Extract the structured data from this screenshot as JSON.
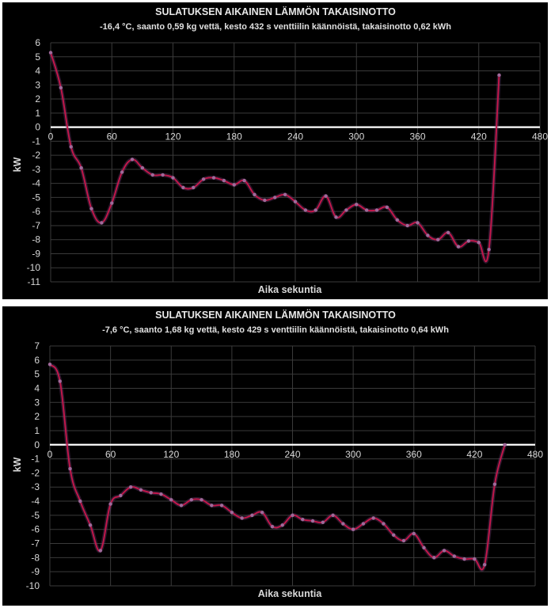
{
  "colors": {
    "background": "#000000",
    "series": "#c8174b",
    "marker": "#a06a9a",
    "zero_line": "#ffffff",
    "grid": "#3a3a3a",
    "text": "#d8d8d8"
  },
  "chart_data": [
    {
      "type": "line",
      "title": "SULATUKSEN AIKAINEN LÄMMÖN TAKAISINOTTO",
      "subtitle": "-16,4 °C, saanto 0,59 kg vettä, kesto 432 s venttiilin käännöistä, takaisinotto 0,62 kWh",
      "xlabel": "Aika sekuntia",
      "ylabel": "kW",
      "xlim": [
        0,
        480
      ],
      "ylim": [
        -11,
        6
      ],
      "xticks": [
        0,
        60,
        120,
        180,
        240,
        300,
        360,
        420,
        480
      ],
      "yticks": [
        6,
        5,
        4,
        3,
        2,
        1,
        0,
        -1,
        -2,
        -3,
        -4,
        -5,
        -6,
        -7,
        -8,
        -9,
        -10,
        -11
      ],
      "series": [
        {
          "name": "kW",
          "x": [
            0,
            10,
            20,
            30,
            40,
            50,
            60,
            70,
            80,
            90,
            100,
            110,
            120,
            130,
            140,
            150,
            160,
            170,
            180,
            190,
            200,
            210,
            220,
            230,
            240,
            250,
            260,
            270,
            280,
            290,
            300,
            310,
            320,
            330,
            340,
            350,
            360,
            370,
            380,
            390,
            400,
            410,
            420,
            430,
            440
          ],
          "y": [
            5.3,
            2.8,
            -1.4,
            -2.9,
            -5.8,
            -6.8,
            -5.4,
            -3.2,
            -2.3,
            -2.9,
            -3.4,
            -3.4,
            -3.6,
            -4.3,
            -4.3,
            -3.7,
            -3.6,
            -3.8,
            -4.1,
            -3.8,
            -4.8,
            -5.2,
            -5.0,
            -4.8,
            -5.3,
            -5.9,
            -5.9,
            -4.9,
            -6.4,
            -5.9,
            -5.5,
            -5.9,
            -5.9,
            -5.7,
            -6.6,
            -7.0,
            -6.8,
            -7.7,
            -8.0,
            -7.5,
            -8.5,
            -8.1,
            -8.2,
            -8.7,
            3.7
          ]
        }
      ]
    },
    {
      "type": "line",
      "title": "SULATUKSEN AIKAINEN LÄMMÖN TAKAISINOTTO",
      "subtitle": "-7,6 °C, saanto 1,68 kg vettä, kesto 429 s venttiilin käännöistä, takaisinotto 0,64 kWh",
      "xlabel": "Aika sekuntia",
      "ylabel": "kW",
      "xlim": [
        0,
        480
      ],
      "ylim": [
        -10,
        7
      ],
      "xticks": [
        0,
        60,
        120,
        180,
        240,
        300,
        360,
        420,
        480
      ],
      "yticks": [
        7,
        6,
        5,
        4,
        3,
        2,
        1,
        0,
        -1,
        -2,
        -3,
        -4,
        -5,
        -6,
        -7,
        -8,
        -9,
        -10
      ],
      "series": [
        {
          "name": "kW",
          "x": [
            0,
            10,
            20,
            30,
            40,
            50,
            60,
            70,
            80,
            90,
            100,
            110,
            120,
            130,
            140,
            150,
            160,
            170,
            180,
            190,
            200,
            210,
            220,
            230,
            240,
            250,
            260,
            270,
            280,
            290,
            300,
            310,
            320,
            330,
            340,
            350,
            360,
            370,
            380,
            390,
            400,
            410,
            420,
            430,
            440,
            450
          ],
          "y": [
            5.7,
            4.5,
            -1.7,
            -4.0,
            -5.7,
            -7.5,
            -4.2,
            -3.6,
            -3.0,
            -3.2,
            -3.4,
            -3.5,
            -3.9,
            -4.3,
            -3.9,
            -3.9,
            -4.3,
            -4.3,
            -4.8,
            -5.2,
            -5.0,
            -4.8,
            -5.8,
            -5.7,
            -5.0,
            -5.3,
            -5.4,
            -5.5,
            -5.0,
            -5.6,
            -6.0,
            -5.6,
            -5.2,
            -5.6,
            -6.4,
            -6.8,
            -6.3,
            -7.3,
            -8.0,
            -7.5,
            -7.9,
            -8.1,
            -8.1,
            -8.5,
            -2.8,
            0.0
          ]
        }
      ]
    }
  ]
}
